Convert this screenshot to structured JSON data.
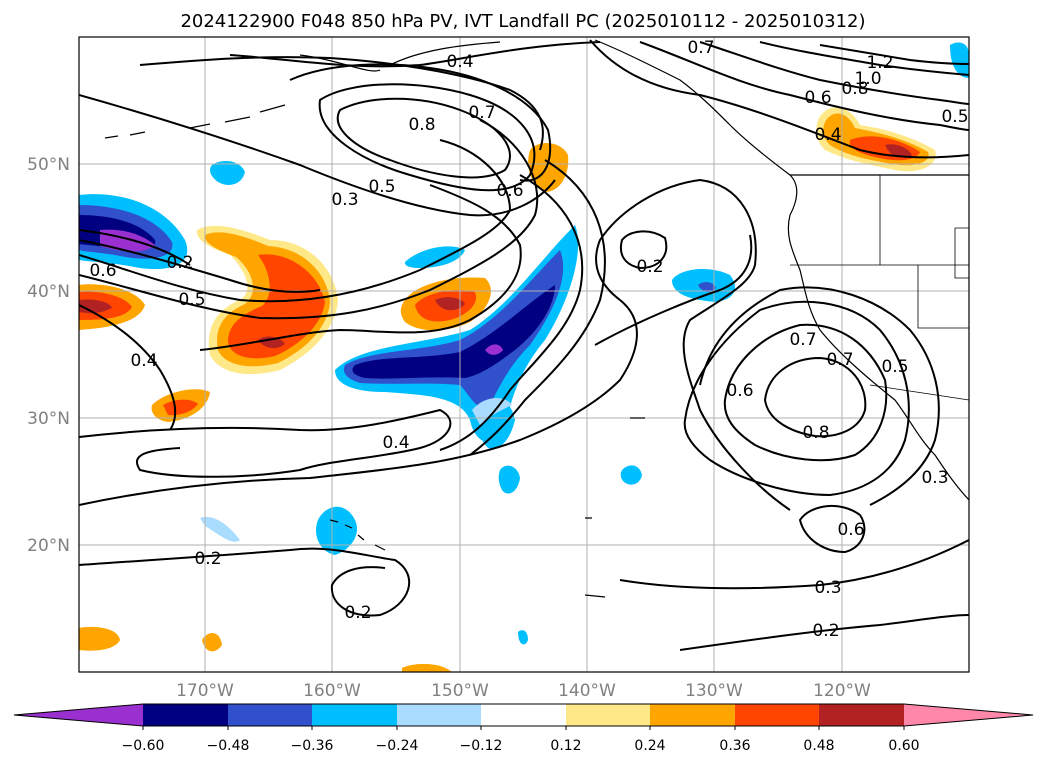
{
  "chart_data": {
    "type": "contour-map",
    "title": "2024122900 F048 850 hPa PV, IVT Landfall PC (2025010112 - 2025010312)",
    "map": {
      "lon_range": [
        -180,
        -110
      ],
      "lat_range": [
        10,
        60
      ],
      "lon_ticks": [
        "170°W",
        "160°W",
        "150°W",
        "140°W",
        "130°W",
        "120°W"
      ],
      "lat_ticks": [
        "20°N",
        "30°N",
        "40°N",
        "50°N"
      ],
      "grid": true
    },
    "colorbar": {
      "extend": "both",
      "ticks": [
        "−0.60",
        "−0.48",
        "−0.36",
        "−0.24",
        "−0.12",
        "0.12",
        "0.24",
        "0.36",
        "0.48",
        "0.60"
      ],
      "colors": [
        "#9b30d0",
        "#000080",
        "#3050cc",
        "#00bfff",
        "#aadcff",
        "#ffffff",
        "#ffe888",
        "#ffa500",
        "#ff4500",
        "#b22222",
        "#ff88aa"
      ]
    },
    "contour_labels": [
      "0.4",
      "0.7",
      "0.8",
      "0.7",
      "0.5",
      "0.3",
      "0.6",
      "0.2",
      "0.6",
      "0.5",
      "0.4",
      "0.2",
      "0.4",
      "0.2",
      "0.2",
      "0.6",
      "0.7",
      "0.8",
      "0.5",
      "0.3",
      "0.3",
      "0.2",
      "0.6",
      "0.7",
      "1.2",
      "1.0",
      "0.8",
      "0.6",
      "0.4",
      "0.5"
    ],
    "pv_fills": [
      {
        "name": "neg-west-edge",
        "lon": -177,
        "lat": 44,
        "value": -0.62
      },
      {
        "name": "neg-central-band",
        "lon": -147,
        "lat": 37,
        "value": -0.55
      },
      {
        "name": "neg-band-tail",
        "lon": -145,
        "lat": 30,
        "value": -0.3
      },
      {
        "name": "neg-hawaii",
        "lon": -159,
        "lat": 21,
        "value": -0.3
      },
      {
        "name": "neg-east-blob",
        "lon": -131,
        "lat": 40,
        "value": -0.4
      },
      {
        "name": "pos-western",
        "lon": -165,
        "lat": 38,
        "value": 0.5
      },
      {
        "name": "pos-central",
        "lon": -150,
        "lat": 38.5,
        "value": 0.5
      },
      {
        "name": "pos-gulf-alaska",
        "lon": -143,
        "lat": 50,
        "value": 0.3
      },
      {
        "name": "pos-bc-coast",
        "lon": -117,
        "lat": 51.5,
        "value": 0.5
      }
    ]
  }
}
